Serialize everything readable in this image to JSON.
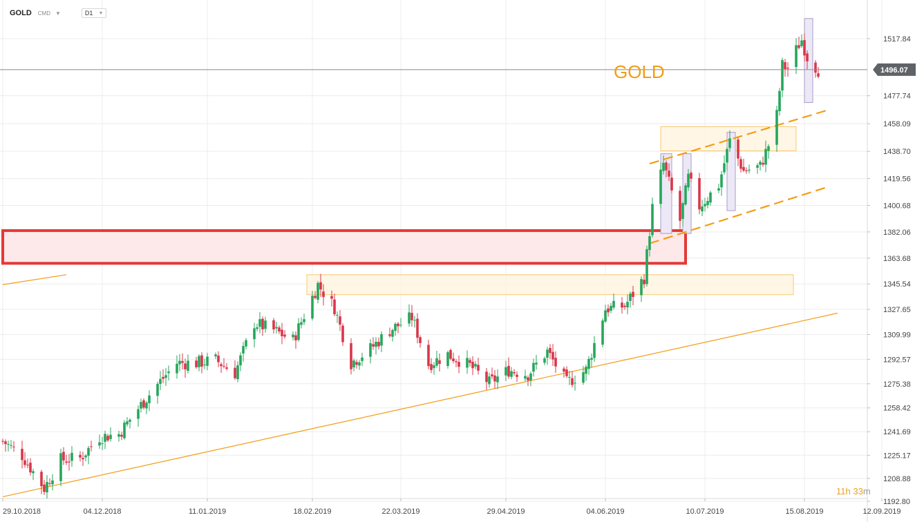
{
  "toolbar": {
    "symbol": "GOLD",
    "exchange": "CMD",
    "timeframe": "D1"
  },
  "timer": {
    "hours": "11",
    "h_unit": "h",
    "minutes": "33",
    "m_unit": "m"
  },
  "colors": {
    "up": "#26a65b",
    "down": "#d9364a",
    "trendline": "#f39c12",
    "zone_red": "#e53935",
    "zone_red_fill": "#fde8ea",
    "zone_yellow_fill": "#fff5e0",
    "zone_yellow_stroke": "#f7c873",
    "box_violet_fill": "#ece8f6",
    "box_violet_stroke": "#a79cc9",
    "price_label_bg": "#5f6368"
  },
  "chart_data": {
    "type": "candlestick",
    "title": "GOLD",
    "ylim": [
      1186,
      1539
    ],
    "x_range": [
      "2018-10-29",
      "2019-09-18"
    ],
    "y_ticks": [
      "1517.84",
      "1496.07",
      "1477.74",
      "1458.09",
      "1438.70",
      "1419.56",
      "1400.68",
      "1382.06",
      "1363.68",
      "1345.54",
      "1327.65",
      "1309.99",
      "1292.57",
      "1275.38",
      "1258.42",
      "1241.69",
      "1225.17",
      "1208.88",
      "1192.80"
    ],
    "y_tick_values": [
      1517.84,
      1496.07,
      1477.74,
      1458.09,
      1438.7,
      1419.56,
      1400.68,
      1382.06,
      1363.68,
      1345.54,
      1327.65,
      1309.99,
      1292.57,
      1275.38,
      1258.42,
      1241.69,
      1225.17,
      1208.88,
      1192.8
    ],
    "x_tick_labels": [
      "29.10.2018",
      "04.12.2018",
      "11.01.2019",
      "18.02.2019",
      "22.03.2019",
      "29.04.2019",
      "04.06.2019",
      "10.07.2019",
      "15.08.2019",
      "12.09.2019"
    ],
    "x_tick_dates": [
      "2018-10-29",
      "2018-12-04",
      "2019-01-11",
      "2019-02-18",
      "2019-03-22",
      "2019-04-29",
      "2019-06-04",
      "2019-07-10",
      "2019-08-15",
      "2019-09-12"
    ],
    "current_price": 1496.07,
    "anchors": [
      [
        "2018-10-29",
        1235
      ],
      [
        "2018-11-05",
        1225
      ],
      [
        "2018-11-13",
        1202
      ],
      [
        "2018-11-19",
        1222
      ],
      [
        "2018-11-26",
        1223
      ],
      [
        "2018-12-03",
        1238
      ],
      [
        "2018-12-10",
        1240
      ],
      [
        "2018-12-17",
        1258
      ],
      [
        "2018-12-24",
        1275
      ],
      [
        "2018-12-31",
        1290
      ],
      [
        "2019-01-07",
        1290
      ],
      [
        "2019-01-14",
        1292
      ],
      [
        "2019-01-21",
        1283
      ],
      [
        "2019-01-28",
        1318
      ],
      [
        "2019-02-04",
        1313
      ],
      [
        "2019-02-11",
        1306
      ],
      [
        "2019-02-20",
        1345
      ],
      [
        "2019-02-26",
        1329
      ],
      [
        "2019-03-04",
        1290
      ],
      [
        "2019-03-11",
        1300
      ],
      [
        "2019-03-18",
        1313
      ],
      [
        "2019-03-26",
        1322
      ],
      [
        "2019-04-01",
        1289
      ],
      [
        "2019-04-08",
        1296
      ],
      [
        "2019-04-16",
        1288
      ],
      [
        "2019-04-23",
        1276
      ],
      [
        "2019-04-30",
        1285
      ],
      [
        "2019-05-07",
        1282
      ],
      [
        "2019-05-14",
        1298
      ],
      [
        "2019-05-21",
        1276
      ],
      [
        "2019-05-28",
        1285
      ],
      [
        "2019-06-04",
        1328
      ],
      [
        "2019-06-11",
        1330
      ],
      [
        "2019-06-18",
        1350
      ],
      [
        "2019-06-21",
        1399
      ],
      [
        "2019-06-25",
        1430
      ],
      [
        "2019-07-01",
        1390
      ],
      [
        "2019-07-04",
        1420
      ],
      [
        "2019-07-08",
        1400
      ],
      [
        "2019-07-15",
        1415
      ],
      [
        "2019-07-19",
        1446
      ],
      [
        "2019-07-24",
        1425
      ],
      [
        "2019-07-30",
        1428
      ],
      [
        "2019-08-02",
        1443
      ],
      [
        "2019-08-05",
        1464
      ],
      [
        "2019-08-07",
        1499
      ],
      [
        "2019-08-09",
        1497
      ],
      [
        "2019-08-13",
        1514
      ],
      [
        "2019-08-14",
        1517
      ],
      [
        "2019-08-16",
        1505
      ],
      [
        "2019-08-20",
        1496
      ]
    ],
    "annotations": {
      "label": "GOLD",
      "resistance_zone_red": {
        "from": "2018-10-29",
        "to": "2019-07-03",
        "y": [
          1360,
          1383
        ]
      },
      "zone_yellow_1": {
        "from": "2019-02-16",
        "to": "2019-08-11",
        "y": [
          1338,
          1352
        ]
      },
      "zone_yellow_2": {
        "from": "2019-06-24",
        "to": "2019-08-12",
        "y": [
          1439,
          1456
        ]
      },
      "violet_boxes": [
        {
          "from": "2019-06-24",
          "to": "2019-06-28",
          "y": [
            1381,
            1437
          ]
        },
        {
          "from": "2019-07-02",
          "to": "2019-07-05",
          "y": [
            1381,
            1437
          ]
        },
        {
          "from": "2019-07-18",
          "to": "2019-07-21",
          "y": [
            1397,
            1452
          ]
        },
        {
          "from": "2019-08-15",
          "to": "2019-08-18",
          "y": [
            1473,
            1532
          ]
        }
      ],
      "trendline_long": {
        "from": [
          "2018-10-29",
          1196
        ],
        "to": [
          "2019-08-27",
          1325
        ]
      },
      "trendline_short": {
        "from": [
          "2018-10-29",
          1345
        ],
        "to": [
          "2018-11-21",
          1352
        ]
      },
      "channel_upper": {
        "from": [
          "2019-06-20",
          1430
        ],
        "to": [
          "2019-08-24",
          1468
        ]
      },
      "channel_lower": {
        "from": [
          "2019-06-20",
          1374
        ],
        "to": [
          "2019-08-24",
          1414
        ]
      }
    }
  }
}
